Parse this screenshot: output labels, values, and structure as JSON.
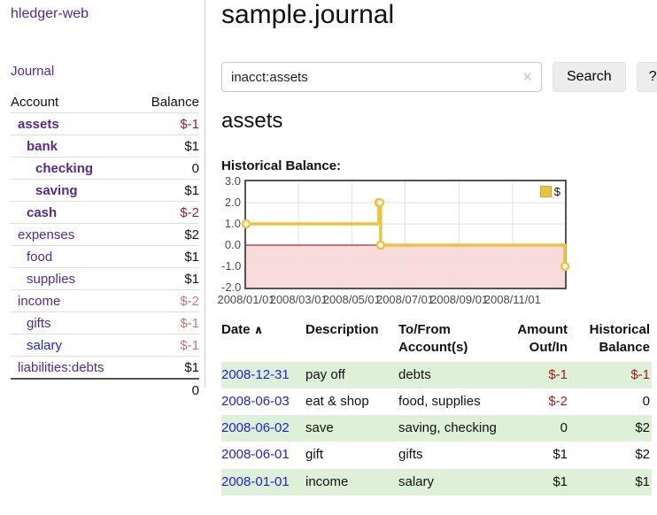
{
  "sidebar": {
    "app_title": "hledger-web",
    "journal_label": "Journal",
    "table": {
      "account_header": "Account",
      "balance_header": "Balance",
      "total": "0"
    },
    "accounts": [
      {
        "name": "assets",
        "balance": "$-1"
      },
      {
        "name": "bank",
        "balance": "$1"
      },
      {
        "name": "checking",
        "balance": "0"
      },
      {
        "name": "saving",
        "balance": "$1"
      },
      {
        "name": "cash",
        "balance": "$-2"
      },
      {
        "name": "expenses",
        "balance": "$2"
      },
      {
        "name": "food",
        "balance": "$1"
      },
      {
        "name": "supplies",
        "balance": "$1"
      },
      {
        "name": "income",
        "balance": "$-2"
      },
      {
        "name": "gifts",
        "balance": "$-1"
      },
      {
        "name": "salary",
        "balance": "$-1"
      },
      {
        "name": "liabilities:debts",
        "balance": "$1"
      }
    ]
  },
  "header": {
    "title": "sample.journal"
  },
  "search": {
    "value": "inacct:assets",
    "button_label": "Search",
    "help_label": "?"
  },
  "icons": {
    "clear": "✕",
    "sort_asc": "∧"
  },
  "account_page": {
    "title": "assets",
    "chart_label": "Historical Balance:"
  },
  "chart_data": {
    "type": "line",
    "step": true,
    "title": "Historical Balance:",
    "series": [
      {
        "name": "$",
        "points": [
          [
            "2008-01-01",
            1
          ],
          [
            "2008-06-01",
            2
          ],
          [
            "2008-06-02",
            2
          ],
          [
            "2008-06-03",
            0
          ],
          [
            "2008-12-31",
            -1
          ]
        ]
      }
    ],
    "x_range": [
      "2008-01-01",
      "2008-12-31"
    ],
    "x_ticks": [
      "2008/01/01",
      "2008/03/01",
      "2008/05/01",
      "2008/07/01",
      "2008/09/01",
      "2008/11/01"
    ],
    "y_ticks": [
      "3.0",
      "2.0",
      "1.0",
      "0.0",
      "-1.0",
      "-2.0"
    ],
    "ylim": [
      -2,
      3
    ],
    "legend_position": "top-right",
    "grid": true,
    "line_color": "#EDC240",
    "marker_fill": "#ffffff",
    "grid_color": "#e3e3e3",
    "negative_region_color": "#f9dbdb",
    "zero_line_color": "#8b0000",
    "border_color": "#545454"
  },
  "register": {
    "headers": {
      "date": "Date",
      "description": "Description",
      "accounts": "To/From Account(s)",
      "amount": "Amount Out/In",
      "balance": "Historical Balance"
    },
    "rows": [
      {
        "date": "2008-12-31",
        "description": "pay off",
        "accounts": "debts",
        "amount": "$-1",
        "balance": "$-1"
      },
      {
        "date": "2008-06-03",
        "description": "eat & shop",
        "accounts": "food, supplies",
        "amount": "$-2",
        "balance": "0"
      },
      {
        "date": "2008-06-02",
        "description": "save",
        "accounts": "saving, checking",
        "amount": "0",
        "balance": "$2"
      },
      {
        "date": "2008-06-01",
        "description": "gift",
        "accounts": "gifts",
        "amount": "$1",
        "balance": "$2"
      },
      {
        "date": "2008-01-01",
        "description": "income",
        "accounts": "salary",
        "amount": "$1",
        "balance": "$1"
      }
    ]
  },
  "colors": {
    "link_purple": "#552a90",
    "link_blue": "#2222dd",
    "negative_strong": "#9e1b1b",
    "negative_soft": "#bd7a76",
    "row_green": "#dff0d8"
  }
}
